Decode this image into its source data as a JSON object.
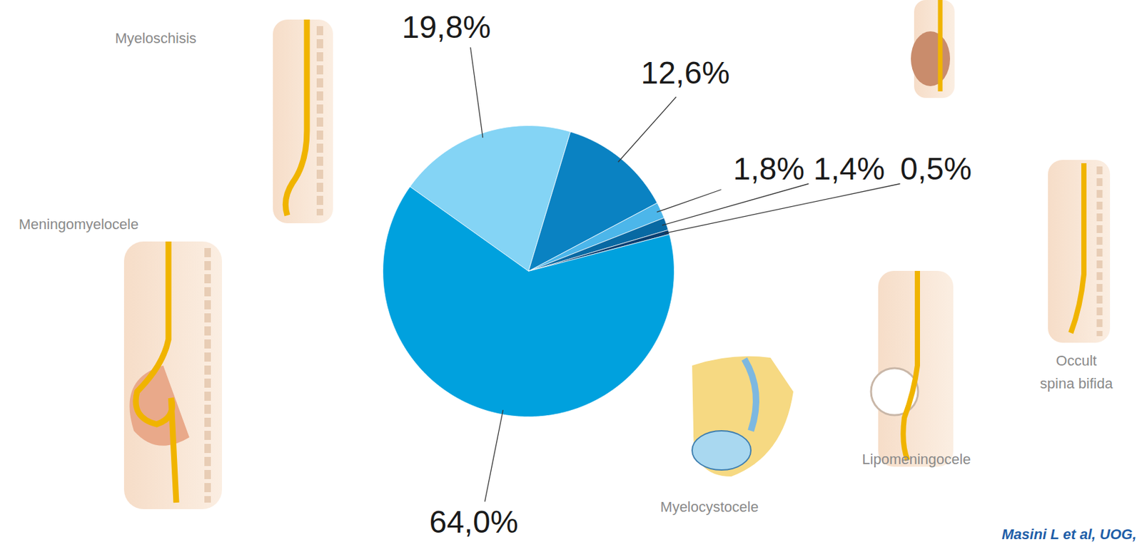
{
  "chart_data": {
    "type": "pie",
    "categories": [
      "Myeloschisis",
      null,
      "Myelocystocele",
      "Lipomeningocele",
      "Occult spina bifida",
      "Meningomyelocele"
    ],
    "values": [
      19.8,
      12.6,
      1.8,
      1.4,
      0.5,
      64.0
    ],
    "value_labels": [
      "19,8%",
      "12,6%",
      "1,8%",
      "1,4%",
      "0,5%",
      "64,0%"
    ],
    "colors": [
      "#84d4f5",
      "#0a82c2",
      "#4cb6ea",
      "#0869a3",
      "#063f72",
      "#00a1de"
    ],
    "data_labels": true,
    "caption": "Masini L et al, UOG,"
  }
}
